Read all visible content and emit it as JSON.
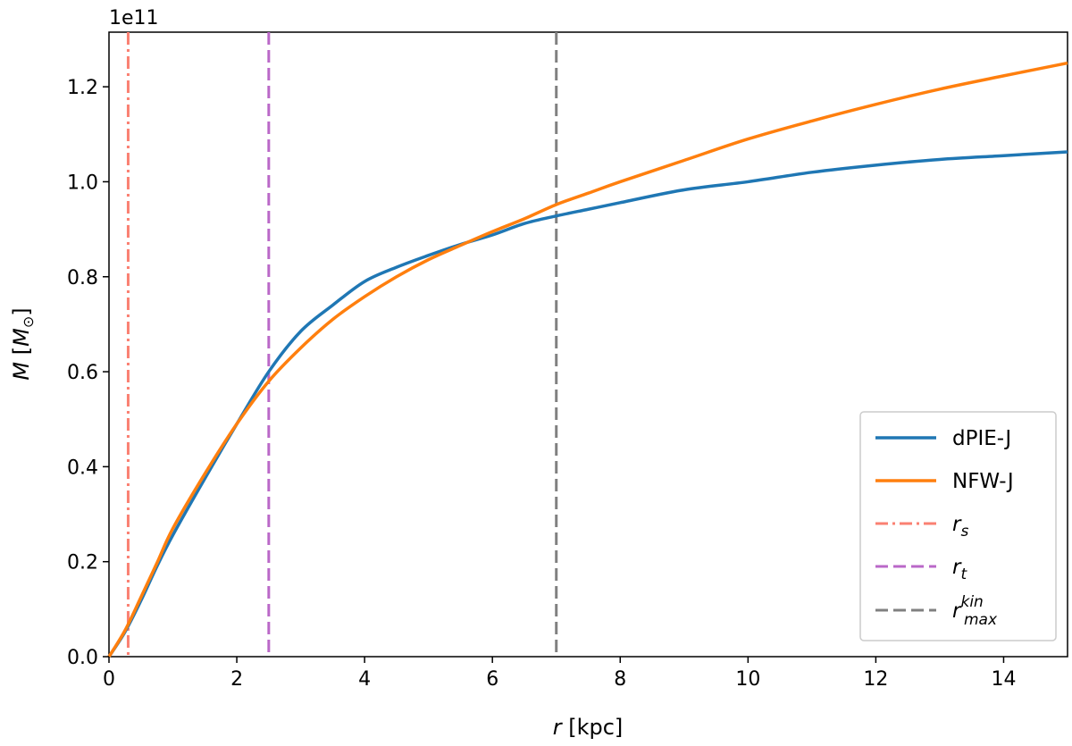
{
  "chart_data": {
    "type": "line",
    "xlabel": {
      "var": "r",
      "unit": "[kpc]"
    },
    "ylabel": {
      "var": "M",
      "unit_open": "[",
      "unit_var": "M",
      "unit_sub": "⊙",
      "unit_close": "]"
    },
    "y_offset_text": "1e11",
    "xlim": [
      0,
      15
    ],
    "ylim": [
      0,
      1.315
    ],
    "x_ticks": [
      0,
      2,
      4,
      6,
      8,
      10,
      12,
      14
    ],
    "y_ticks": [
      0.0,
      0.2,
      0.4,
      0.6,
      0.8,
      1.0,
      1.2
    ],
    "x_tick_labels": [
      "0",
      "2",
      "4",
      "6",
      "8",
      "10",
      "12",
      "14"
    ],
    "y_tick_labels": [
      "0.0",
      "0.2",
      "0.4",
      "0.6",
      "0.8",
      "1.0",
      "1.2"
    ],
    "grid": false,
    "legend_position": "bottom-right",
    "series": [
      {
        "name": "dPIE-J",
        "color": "#1f77b4",
        "x": [
          0,
          0.25,
          0.5,
          0.75,
          1,
          1.5,
          2,
          2.5,
          3,
          3.5,
          4,
          4.5,
          5,
          5.5,
          6,
          6.5,
          7,
          7.5,
          8,
          9,
          10,
          11,
          12,
          13,
          14,
          15
        ],
        "y": [
          0.0,
          0.052,
          0.118,
          0.19,
          0.256,
          0.375,
          0.49,
          0.6,
          0.685,
          0.74,
          0.79,
          0.82,
          0.845,
          0.868,
          0.888,
          0.912,
          0.928,
          0.942,
          0.956,
          0.983,
          1.0,
          1.02,
          1.035,
          1.047,
          1.055,
          1.063
        ]
      },
      {
        "name": "NFW-J",
        "color": "#ff7f0e",
        "x": [
          0,
          0.25,
          0.5,
          0.75,
          1,
          1.5,
          2,
          2.5,
          3,
          3.5,
          4,
          4.5,
          5,
          5.5,
          6,
          6.5,
          7,
          7.5,
          8,
          9,
          10,
          11,
          12,
          13,
          14,
          15
        ],
        "y": [
          0.0,
          0.055,
          0.125,
          0.197,
          0.27,
          0.385,
          0.49,
          0.58,
          0.65,
          0.71,
          0.758,
          0.8,
          0.836,
          0.866,
          0.895,
          0.922,
          0.952,
          0.976,
          1.0,
          1.045,
          1.09,
          1.128,
          1.163,
          1.195,
          1.223,
          1.25
        ]
      }
    ],
    "vlines": [
      {
        "name": "r_s",
        "label": {
          "main": "r",
          "sub": "s"
        },
        "x": 0.3,
        "color": "#fa8072",
        "dash": "dashdot"
      },
      {
        "name": "r_t",
        "label": {
          "main": "r",
          "sub": "t"
        },
        "x": 2.5,
        "color": "#ba68c8",
        "dash": "dashed"
      },
      {
        "name": "r_max_kin",
        "label": {
          "main": "r",
          "sub": "max",
          "sup": "kin"
        },
        "x": 7.0,
        "color": "#808080",
        "dash": "dashed"
      }
    ]
  }
}
